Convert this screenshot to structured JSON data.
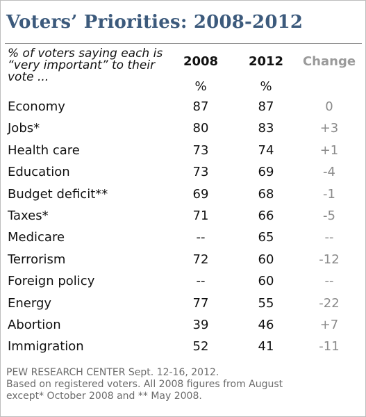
{
  "chart_data": {
    "type": "table",
    "title": "Voters’ Priorities: 2008-2012",
    "subtitle": "% of voters saying each is “very important” to their vote ...",
    "columns": [
      "2008",
      "2012",
      "Change"
    ],
    "units": [
      "%",
      "%"
    ],
    "rows": [
      {
        "label": "Economy",
        "v2008": "87",
        "v2012": "87",
        "change": "0"
      },
      {
        "label": "Jobs*",
        "v2008": "80",
        "v2012": "83",
        "change": "+3"
      },
      {
        "label": "Health care",
        "v2008": "73",
        "v2012": "74",
        "change": "+1"
      },
      {
        "label": "Education",
        "v2008": "73",
        "v2012": "69",
        "change": "-4"
      },
      {
        "label": "Budget deficit**",
        "v2008": "69",
        "v2012": "68",
        "change": "-1"
      },
      {
        "label": "Taxes*",
        "v2008": "71",
        "v2012": "66",
        "change": "-5"
      },
      {
        "label": "Medicare",
        "v2008": "--",
        "v2012": "65",
        "change": "--"
      },
      {
        "label": "Terrorism",
        "v2008": "72",
        "v2012": "60",
        "change": "-12"
      },
      {
        "label": "Foreign policy",
        "v2008": "--",
        "v2012": "60",
        "change": "--"
      },
      {
        "label": "Energy",
        "v2008": "77",
        "v2012": "55",
        "change": "-22"
      },
      {
        "label": "Abortion",
        "v2008": "39",
        "v2012": "46",
        "change": "+7"
      },
      {
        "label": "Immigration",
        "v2008": "52",
        "v2012": "41",
        "change": "-11"
      }
    ],
    "source_lines": [
      "PEW RESEARCH  CENTER Sept. 12-16, 2012.",
      "Based on registered voters. All 2008 figures from August",
      "except* October 2008 and ** May 2008."
    ]
  },
  "colors": {
    "title": "#3c5a7c",
    "change_header": "#9a9a9a",
    "change_values": "#8a8a8a",
    "footnote": "#6b6b6b"
  }
}
